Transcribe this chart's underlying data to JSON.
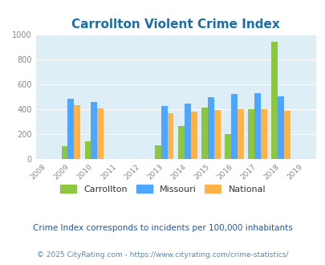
{
  "title": "Carrollton Violent Crime Index",
  "subtitle": "Crime Index corresponds to incidents per 100,000 inhabitants",
  "footer": "© 2025 CityRating.com - https://www.cityrating.com/crime-statistics/",
  "years": [
    2008,
    2009,
    2010,
    2011,
    2012,
    2013,
    2014,
    2015,
    2016,
    2017,
    2018,
    2019
  ],
  "data_years": [
    2009,
    2010,
    2013,
    2014,
    2015,
    2016,
    2017,
    2018
  ],
  "carrollton": [
    105,
    140,
    110,
    265,
    415,
    200,
    400,
    940
  ],
  "missouri": [
    485,
    460,
    425,
    445,
    495,
    520,
    530,
    500
  ],
  "national": [
    430,
    405,
    370,
    380,
    395,
    400,
    400,
    385
  ],
  "carrollton_color": "#8dc63f",
  "missouri_color": "#4da6ff",
  "national_color": "#ffb347",
  "plot_bg_color": "#ddeef6",
  "fig_bg_color": "#ffffff",
  "ylim": [
    0,
    1000
  ],
  "yticks": [
    0,
    200,
    400,
    600,
    800,
    1000
  ],
  "title_color": "#1a6fa8",
  "subtitle_color": "#2255aa",
  "footer_color": "#5588bb",
  "bar_width": 0.27,
  "grid_color": "#ffffff",
  "tick_label_color": "#888888",
  "legend_label_color": "#333333"
}
